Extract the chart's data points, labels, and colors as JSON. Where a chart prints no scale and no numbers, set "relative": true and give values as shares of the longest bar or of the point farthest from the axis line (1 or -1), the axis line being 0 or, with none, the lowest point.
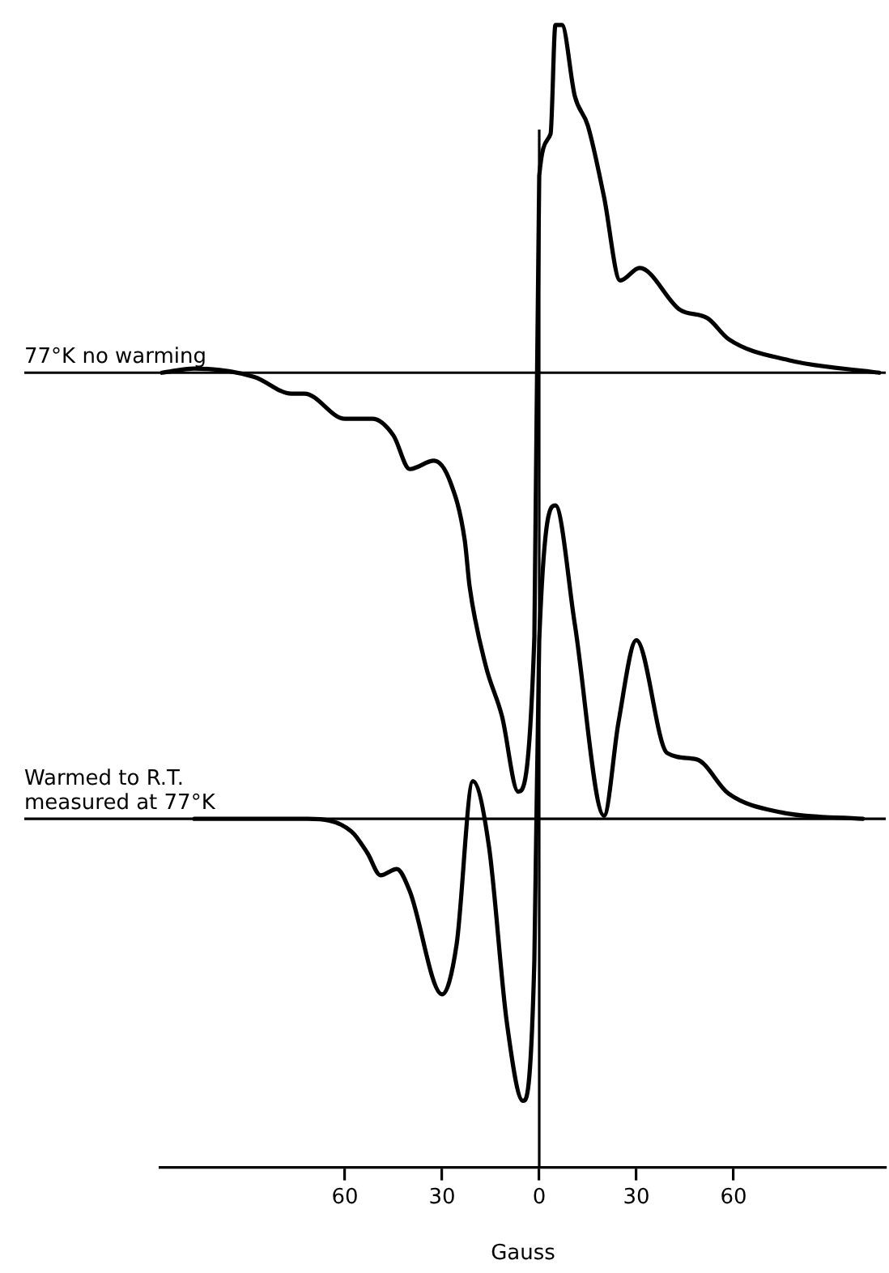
{
  "chart_data": {
    "type": "line",
    "relative": true,
    "marker": "none",
    "xlabel": "Gauss",
    "xlim": [
      -117,
      107
    ],
    "xticks": [
      {
        "value": -60,
        "label": "60"
      },
      {
        "value": -30,
        "label": "30"
      },
      0,
      {
        "value": 30,
        "label": "30"
      },
      {
        "value": 60,
        "label": "60"
      }
    ],
    "ref_lines": [
      {
        "axis": "x",
        "value": 0
      }
    ],
    "series": [
      {
        "name": "77°K no warming",
        "color": "#000000",
        "x": [
          -116.5,
          -106.5,
          -88,
          -76.5,
          -72.5,
          -60,
          -51.5,
          -45,
          -40,
          -32.5,
          -27.5,
          -23,
          -21.5,
          -16.5,
          -11.5,
          -6.5,
          -1.5,
          0,
          3.5,
          5,
          7,
          11,
          15,
          20,
          25,
          31,
          43.5,
          52,
          58.5,
          77,
          105
        ],
        "values": [
          0,
          0.01,
          -0.01,
          -0.05,
          -0.05,
          -0.11,
          -0.11,
          -0.15,
          -0.23,
          -0.21,
          -0.26,
          -0.4,
          -0.51,
          -0.7,
          -0.82,
          -1,
          -0.63,
          0.47,
          0.57,
          0.83,
          0.83,
          0.66,
          0.59,
          0.42,
          0.22,
          0.25,
          0.15,
          0.13,
          0.08,
          0.03,
          0
        ]
      },
      {
        "name": "Warmed to R.T. measured at 77°K",
        "color": "#000000",
        "axis": "y2",
        "x": [
          -106.5,
          -71.5,
          -58,
          -53,
          -49,
          -44,
          -40,
          -30,
          -25.5,
          -20.5,
          -15.5,
          -10,
          -5,
          -1.5,
          0,
          5,
          11,
          20,
          24.5,
          30,
          39.5,
          48.5,
          58.5,
          75,
          100
        ],
        "values": [
          0,
          0,
          -0.04,
          -0.11,
          -0.18,
          -0.16,
          -0.23,
          -0.56,
          -0.4,
          0.12,
          -0.09,
          -0.65,
          -0.9,
          -0.45,
          0.57,
          1,
          0.62,
          0.01,
          0.31,
          0.57,
          0.21,
          0.19,
          0.08,
          0.02,
          0
        ]
      }
    ]
  }
}
